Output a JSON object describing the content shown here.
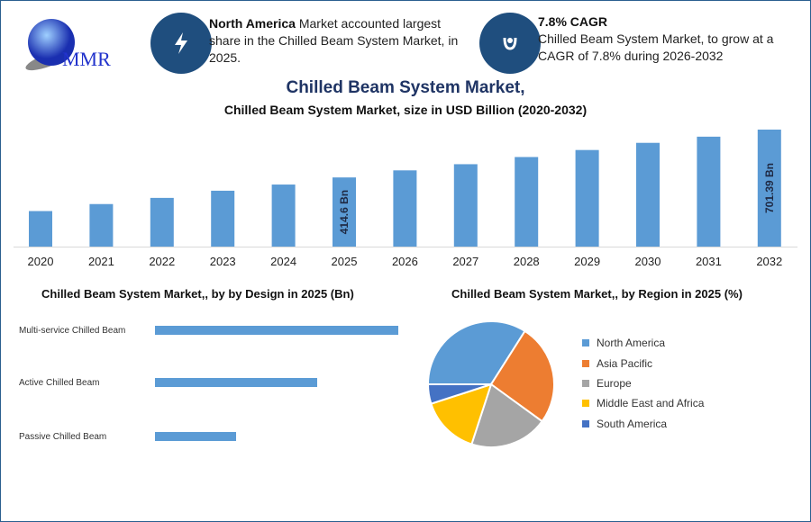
{
  "logo": {
    "text": "MMR"
  },
  "info1": {
    "bold": "North America",
    "text": " Market accounted largest share in the Chilled Beam System Market, in 2025.",
    "icon": "lightning-icon"
  },
  "info2": {
    "bold": "7.8% CAGR",
    "text": "Chilled Beam System Market, to grow at a CAGR of 7.8% during 2026-2032",
    "icon": "growth-icon"
  },
  "colors": {
    "bar": "#5b9bd5",
    "navy": "#1f4e7e"
  },
  "chart_data": [
    {
      "type": "bar",
      "title": "Chilled Beam System Market,",
      "subtitle": "Chilled Beam System Market, size in USD Billion (2020-2032)",
      "categories": [
        "2020",
        "2021",
        "2022",
        "2023",
        "2024",
        "2025",
        "2026",
        "2027",
        "2028",
        "2029",
        "2030",
        "2031",
        "2032"
      ],
      "values": [
        213,
        255,
        292,
        335,
        372,
        414.6,
        457,
        494,
        537,
        579,
        622,
        659,
        701.39
      ],
      "data_labels": {
        "5": "414.6 Bn",
        "12": "701.39 Bn"
      },
      "ylim": [
        0,
        701.39
      ]
    },
    {
      "type": "bar",
      "orientation": "horizontal",
      "title": "Chilled Beam System Market,, by by Design in 2025 (Bn)",
      "categories": [
        "Multi-service Chilled Beam",
        "Active Chilled Beam",
        "Passive Chilled Beam"
      ],
      "values": [
        3,
        2,
        1
      ],
      "xlim": [
        0,
        3
      ]
    },
    {
      "type": "pie",
      "title": "Chilled Beam System Market,, by Region in 2025 (%)",
      "categories": [
        "North America",
        "Asia Pacific",
        "Europe",
        "Middle East and Africa",
        "South America"
      ],
      "values": [
        34,
        26,
        20,
        15,
        5
      ],
      "colors": [
        "#5b9bd5",
        "#ed7d31",
        "#a5a5a5",
        "#ffc000",
        "#4472c4"
      ],
      "legend": "right"
    }
  ]
}
